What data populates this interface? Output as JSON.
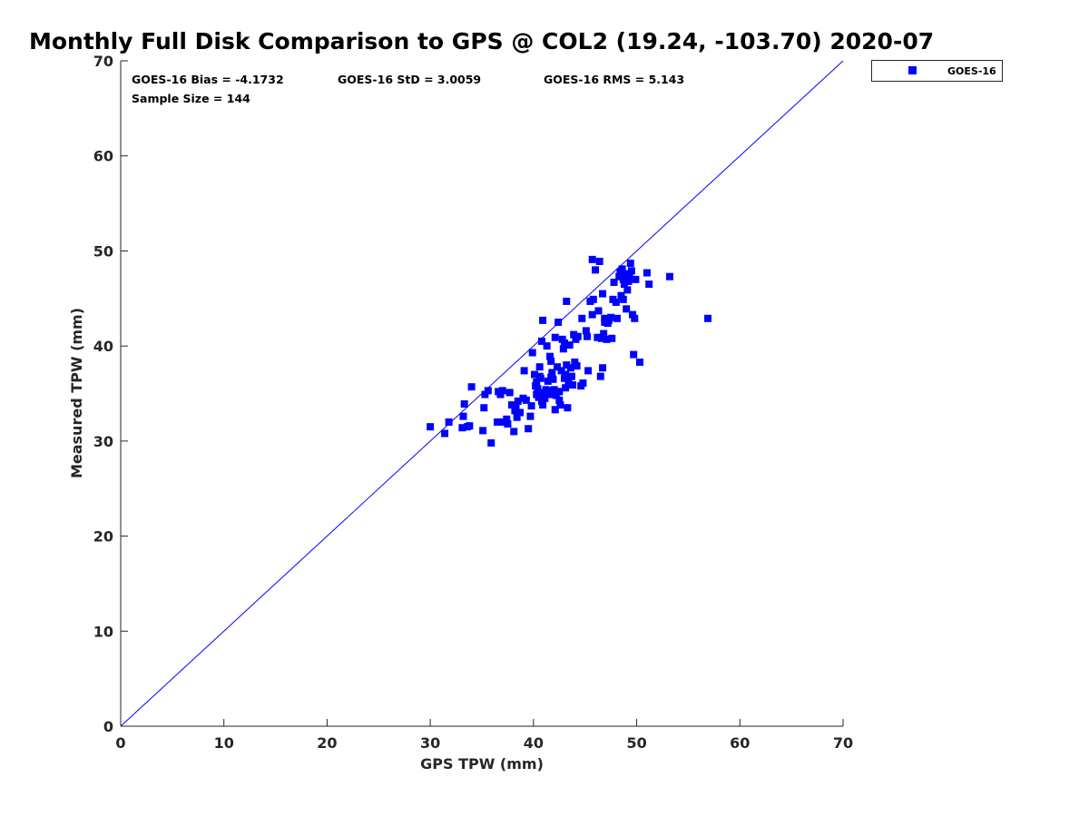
{
  "chart_data": {
    "type": "scatter",
    "title": "Monthly Full Disk Comparison to GPS @ COL2 (19.24, -103.70) 2020-07",
    "xlabel": "GPS TPW (mm)",
    "ylabel": "Measured TPW (mm)",
    "xlim": [
      0,
      70
    ],
    "ylim": [
      0,
      70
    ],
    "xticks": [
      "0",
      "10",
      "20",
      "30",
      "40",
      "50",
      "60",
      "70"
    ],
    "yticks": [
      "0",
      "10",
      "20",
      "30",
      "40",
      "50",
      "60",
      "70"
    ],
    "grid": false,
    "legend_position": "outside-top-right",
    "reference_line": [
      [
        0,
        0
      ],
      [
        70,
        70
      ]
    ],
    "reference_line_color": "#0000ff",
    "marker_color": "#0000ff",
    "stats": {
      "bias": "GOES-16 Bias = -4.1732",
      "std": "GOES-16 StD = 3.0059",
      "rms": "GOES-16 RMS = 5.143",
      "sample": "Sample Size = 144"
    },
    "series": [
      {
        "name": "GOES-16",
        "points": [
          [
            30.0,
            31.5
          ],
          [
            31.4,
            30.8
          ],
          [
            31.8,
            32.0
          ],
          [
            33.1,
            31.4
          ],
          [
            33.2,
            32.6
          ],
          [
            33.3,
            33.9
          ],
          [
            33.6,
            31.5
          ],
          [
            33.8,
            31.6
          ],
          [
            34.0,
            35.7
          ],
          [
            35.1,
            31.1
          ],
          [
            35.2,
            33.5
          ],
          [
            35.3,
            34.9
          ],
          [
            35.6,
            35.3
          ],
          [
            35.9,
            29.8
          ],
          [
            36.5,
            32.0
          ],
          [
            36.6,
            35.2
          ],
          [
            36.8,
            34.9
          ],
          [
            37.0,
            35.3
          ],
          [
            37.1,
            32.0
          ],
          [
            37.4,
            32.3
          ],
          [
            37.5,
            31.8
          ],
          [
            37.7,
            35.1
          ],
          [
            37.9,
            33.8
          ],
          [
            38.1,
            31.0
          ],
          [
            38.2,
            33.2
          ],
          [
            38.4,
            32.5
          ],
          [
            38.5,
            34.2
          ],
          [
            38.7,
            33.0
          ],
          [
            39.0,
            34.5
          ],
          [
            39.1,
            37.4
          ],
          [
            39.5,
            31.3
          ],
          [
            39.7,
            32.6
          ],
          [
            39.8,
            33.7
          ],
          [
            39.9,
            39.3
          ],
          [
            40.1,
            37.0
          ],
          [
            40.2,
            35.8
          ],
          [
            40.3,
            36.2
          ],
          [
            40.4,
            35.5
          ],
          [
            40.5,
            34.6
          ],
          [
            40.6,
            37.8
          ],
          [
            40.7,
            36.6
          ],
          [
            40.8,
            34.2
          ],
          [
            40.8,
            40.5
          ],
          [
            40.9,
            33.8
          ],
          [
            41.0,
            35.1
          ],
          [
            40.9,
            42.7
          ],
          [
            41.1,
            34.5
          ],
          [
            41.2,
            35.4
          ],
          [
            41.3,
            40.0
          ],
          [
            41.4,
            36.3
          ],
          [
            41.5,
            35.3
          ],
          [
            41.6,
            38.9
          ],
          [
            41.6,
            34.9
          ],
          [
            41.7,
            38.4
          ],
          [
            41.8,
            37.2
          ],
          [
            41.9,
            36.5
          ],
          [
            42.0,
            35.4
          ],
          [
            42.1,
            40.9
          ],
          [
            42.1,
            33.3
          ],
          [
            42.2,
            34.8
          ],
          [
            42.3,
            37.8
          ],
          [
            42.4,
            42.5
          ],
          [
            42.5,
            35.2
          ],
          [
            42.5,
            34.3
          ],
          [
            42.6,
            33.8
          ],
          [
            42.7,
            37.4
          ],
          [
            42.8,
            40.7
          ],
          [
            42.9,
            39.7
          ],
          [
            43.0,
            40.3
          ],
          [
            43.0,
            36.6
          ],
          [
            43.1,
            35.6
          ],
          [
            43.2,
            38.0
          ],
          [
            43.2,
            44.7
          ],
          [
            43.3,
            33.5
          ],
          [
            43.4,
            36.1
          ],
          [
            43.5,
            40.1
          ],
          [
            43.6,
            37.7
          ],
          [
            43.7,
            36.8
          ],
          [
            43.8,
            35.9
          ],
          [
            43.9,
            41.2
          ],
          [
            44.0,
            38.3
          ],
          [
            44.1,
            40.7
          ],
          [
            44.3,
            41.0
          ],
          [
            44.6,
            35.8
          ],
          [
            44.7,
            42.9
          ],
          [
            44.8,
            36.1
          ],
          [
            45.1,
            41.6
          ],
          [
            45.2,
            41.0
          ],
          [
            45.3,
            37.4
          ],
          [
            45.5,
            44.7
          ],
          [
            45.7,
            43.3
          ],
          [
            45.7,
            49.1
          ],
          [
            45.8,
            44.9
          ],
          [
            46.0,
            48.0
          ],
          [
            46.2,
            40.9
          ],
          [
            46.3,
            43.7
          ],
          [
            46.4,
            48.9
          ],
          [
            46.5,
            36.8
          ],
          [
            46.6,
            40.8
          ],
          [
            46.7,
            45.5
          ],
          [
            46.8,
            41.3
          ],
          [
            46.9,
            42.5
          ],
          [
            46.7,
            37.7
          ],
          [
            47.1,
            40.7
          ],
          [
            47.3,
            42.7
          ],
          [
            47.6,
            40.8
          ],
          [
            47.7,
            44.9
          ],
          [
            47.8,
            46.7
          ],
          [
            48.1,
            42.9
          ],
          [
            48.3,
            47.3
          ],
          [
            48.4,
            47.8
          ],
          [
            48.5,
            45.3
          ],
          [
            48.6,
            48.1
          ],
          [
            48.7,
            44.9
          ],
          [
            48.7,
            47.0
          ],
          [
            48.8,
            46.5
          ],
          [
            48.9,
            47.6
          ],
          [
            49.0,
            43.9
          ],
          [
            49.1,
            45.9
          ],
          [
            49.2,
            46.8
          ],
          [
            49.3,
            47.5
          ],
          [
            49.4,
            48.7
          ],
          [
            49.5,
            47.9
          ],
          [
            49.6,
            43.3
          ],
          [
            49.7,
            39.1
          ],
          [
            49.8,
            42.9
          ],
          [
            49.9,
            47.0
          ],
          [
            50.3,
            38.3
          ],
          [
            51.0,
            47.7
          ],
          [
            51.2,
            46.5
          ],
          [
            53.2,
            47.3
          ],
          [
            56.9,
            42.9
          ],
          [
            47.2,
            42.4
          ],
          [
            48.0,
            44.6
          ],
          [
            41.7,
            36.7
          ],
          [
            43.1,
            37.0
          ],
          [
            44.2,
            37.9
          ],
          [
            40.3,
            34.9
          ],
          [
            39.3,
            34.3
          ],
          [
            42.3,
            35.2
          ],
          [
            38.3,
            33.5
          ],
          [
            47.5,
            43.0
          ],
          [
            46.9,
            42.9
          ],
          [
            40.6,
            36.8
          ]
        ]
      }
    ]
  }
}
